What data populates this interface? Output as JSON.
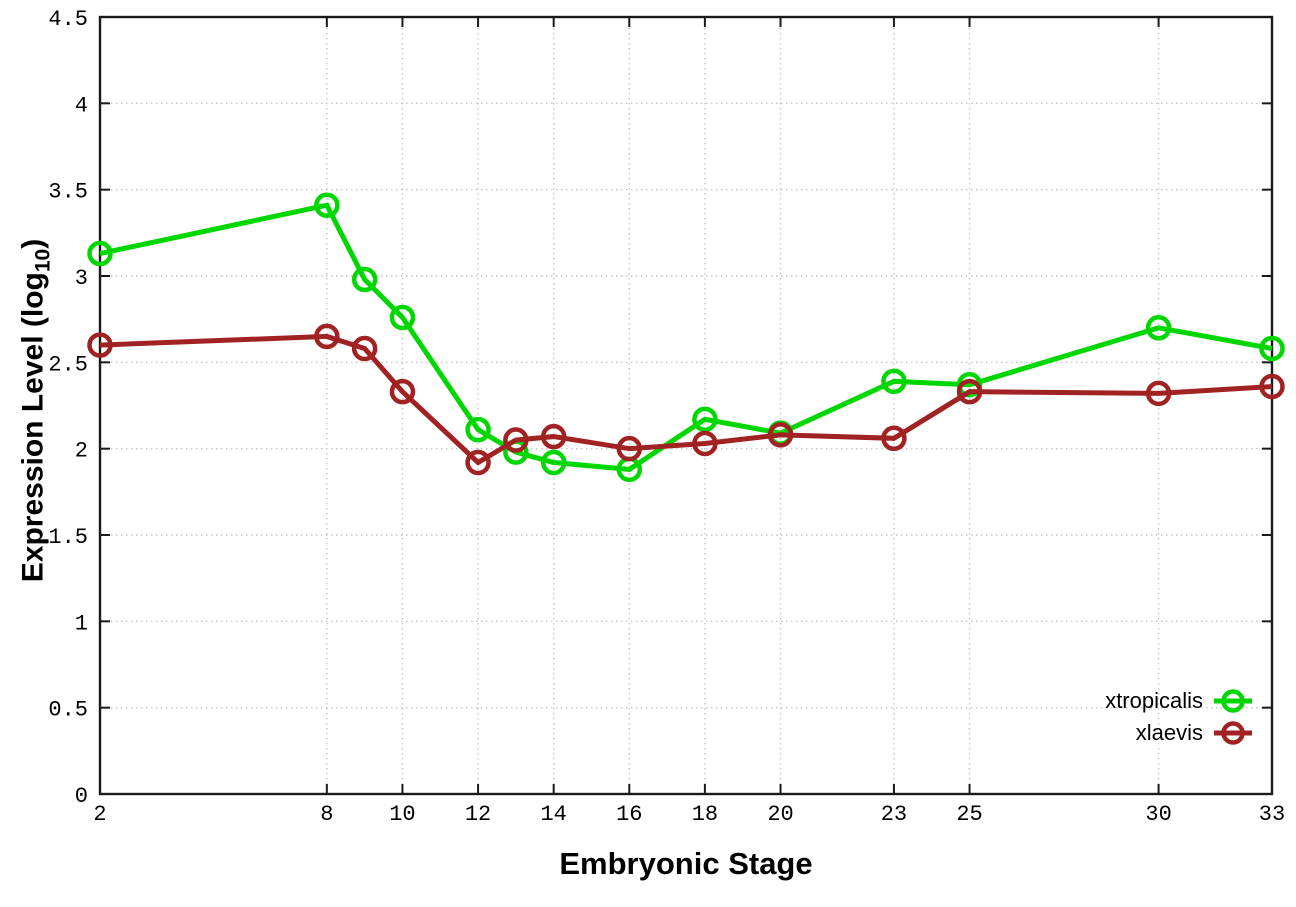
{
  "figure": {
    "background": "#ffffff",
    "xlabel": "Embryonic Stage",
    "ylabel_pre": "Expression Level (log",
    "ylabel_sub": "10",
    "ylabel_post": ")"
  },
  "chart_data": {
    "type": "line",
    "title": "",
    "xlabel": "Embryonic Stage",
    "ylabel": "Expression Level (log10)",
    "x": [
      2,
      8,
      9,
      10,
      12,
      13,
      14,
      16,
      18,
      20,
      23,
      25,
      30,
      33
    ],
    "series": [
      {
        "name": "xtropicalis",
        "color": "#00d700",
        "values": [
          3.13,
          3.41,
          2.98,
          2.76,
          2.11,
          1.98,
          1.92,
          1.88,
          2.17,
          2.09,
          2.39,
          2.37,
          2.7,
          2.58
        ]
      },
      {
        "name": "xlaevis",
        "color": "#a02222",
        "values": [
          2.6,
          2.65,
          2.58,
          2.33,
          1.92,
          2.05,
          2.07,
          2.0,
          2.03,
          2.08,
          2.06,
          2.33,
          2.32,
          2.36
        ]
      }
    ],
    "xlim": [
      2,
      33
    ],
    "ylim": [
      0,
      4.5
    ],
    "xticks": [
      2,
      8,
      10,
      12,
      14,
      16,
      18,
      20,
      23,
      25,
      30,
      33
    ],
    "xtick_labels": [
      "2",
      "8",
      "10",
      "12",
      "14",
      "16",
      "18",
      "20",
      "23",
      "25",
      "30",
      "33"
    ],
    "yticks": [
      0,
      0.5,
      1,
      1.5,
      2,
      2.5,
      3,
      3.5,
      4,
      4.5
    ],
    "ytick_labels": [
      "0",
      "0.5",
      "1",
      "1.5",
      "2",
      "2.5",
      "3",
      "3.5",
      "4",
      "4.5"
    ],
    "grid": true,
    "grid_style": "dotted",
    "legend_position": "bottom-right",
    "marker": "open-circle",
    "colors": {
      "grid": "#c4c4c4",
      "axis": "#1a1a1a",
      "text": "#000000"
    }
  },
  "legend": {
    "items": [
      {
        "label": "xtropicalis",
        "color": "#00d700"
      },
      {
        "label": "xlaevis",
        "color": "#a02222"
      }
    ]
  }
}
